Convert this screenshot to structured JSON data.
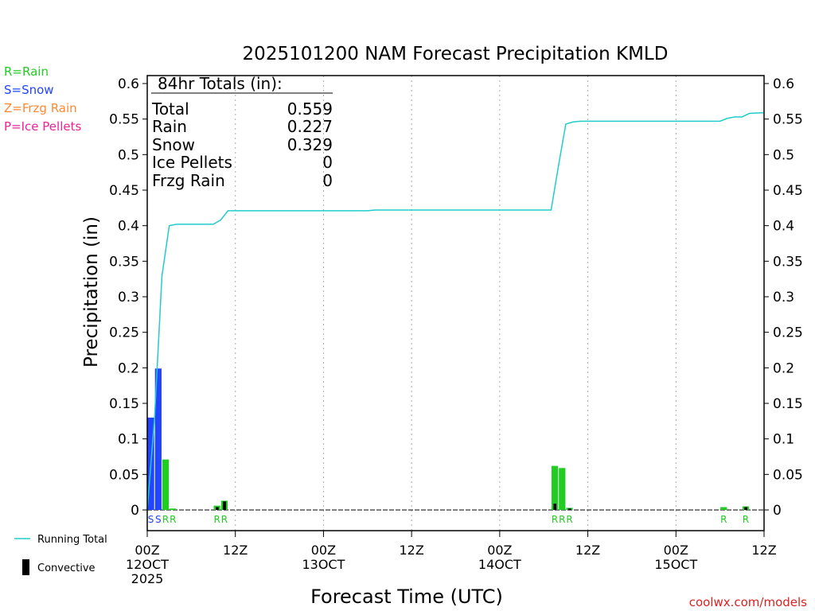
{
  "chart_data": {
    "type": "bar",
    "title": "2025101200 NAM Forecast Precipitation KMLD",
    "xlabel": "Forecast Time (UTC)",
    "ylabel": "Precipitation (in)",
    "ylim": [
      0,
      0.6
    ],
    "yticks": [
      "0",
      "0.05",
      "0.1",
      "0.15",
      "0.2",
      "0.25",
      "0.3",
      "0.35",
      "0.4",
      "0.45",
      "0.5",
      "0.55",
      "0.6"
    ],
    "xlim_hours": [
      0,
      84
    ],
    "x_ticks": [
      {
        "hour": 0,
        "lines": [
          "00Z",
          "12OCT",
          "2025"
        ]
      },
      {
        "hour": 12,
        "lines": [
          "12Z"
        ]
      },
      {
        "hour": 24,
        "lines": [
          "00Z",
          "13OCT"
        ]
      },
      {
        "hour": 36,
        "lines": [
          "12Z"
        ]
      },
      {
        "hour": 48,
        "lines": [
          "00Z",
          "14OCT"
        ]
      },
      {
        "hour": 60,
        "lines": [
          "12Z"
        ]
      },
      {
        "hour": 72,
        "lines": [
          "00Z",
          "15OCT"
        ]
      },
      {
        "hour": 84,
        "lines": [
          "12Z"
        ]
      }
    ],
    "grid": "dotted-vertical",
    "legend_types": [
      {
        "text": "R=Rain",
        "color": "#22cc22"
      },
      {
        "text": "S=Snow",
        "color": "#2244ff"
      },
      {
        "text": "Z=Frzg Rain",
        "color": "#ff8833"
      },
      {
        "text": "P=Ice Pellets",
        "color": "#ee2299"
      }
    ],
    "legend_series": [
      {
        "text": "Running Total",
        "color": "#22cccc"
      },
      {
        "text": "Convective",
        "color": "#000000"
      }
    ],
    "totals": {
      "header": "84hr Totals (in):",
      "rows": [
        {
          "label": "Total",
          "value": "0.559"
        },
        {
          "label": "Rain",
          "value": "0.227"
        },
        {
          "label": "Snow",
          "value": "0.329"
        },
        {
          "label": "Ice Pellets",
          "value": "0"
        },
        {
          "label": "Frzg Rain",
          "value": "0"
        }
      ]
    },
    "bars": [
      {
        "hour": 1,
        "value": 0.13,
        "type": "S",
        "convective": 0
      },
      {
        "hour": 2,
        "value": 0.199,
        "type": "S",
        "convective": 0
      },
      {
        "hour": 3,
        "value": 0.071,
        "type": "R",
        "convective": 0
      },
      {
        "hour": 4,
        "value": 0.002,
        "type": "R",
        "convective": 0
      },
      {
        "hour": 10,
        "value": 0.006,
        "type": "R",
        "convective": 0.004
      },
      {
        "hour": 11,
        "value": 0.013,
        "type": "R",
        "convective": 0.012
      },
      {
        "hour": 56,
        "value": 0.062,
        "type": "R",
        "convective": 0.009
      },
      {
        "hour": 57,
        "value": 0.059,
        "type": "R",
        "convective": 0
      },
      {
        "hour": 58,
        "value": 0.003,
        "type": "R",
        "convective": 0.002
      },
      {
        "hour": 79,
        "value": 0.004,
        "type": "R",
        "convective": 0
      },
      {
        "hour": 82,
        "value": 0.005,
        "type": "R",
        "convective": 0.004
      }
    ],
    "type_labels": [
      {
        "hour": 1,
        "text": "S",
        "color": "#2244ff"
      },
      {
        "hour": 2,
        "text": "S",
        "color": "#2244ff"
      },
      {
        "hour": 3,
        "text": "R",
        "color": "#22cc22"
      },
      {
        "hour": 4,
        "text": "R",
        "color": "#22cc22"
      },
      {
        "hour": 10,
        "text": "R",
        "color": "#22cc22"
      },
      {
        "hour": 11,
        "text": "R",
        "color": "#22cc22"
      },
      {
        "hour": 56,
        "text": "R",
        "color": "#22cc22"
      },
      {
        "hour": 57,
        "text": "R",
        "color": "#22cc22"
      },
      {
        "hour": 58,
        "text": "R",
        "color": "#22cc22"
      },
      {
        "hour": 79,
        "text": "R",
        "color": "#22cc22"
      },
      {
        "hour": 82,
        "text": "R",
        "color": "#22cc22"
      }
    ],
    "running_total": [
      [
        0,
        0
      ],
      [
        1,
        0.13
      ],
      [
        2,
        0.329
      ],
      [
        3,
        0.4
      ],
      [
        4,
        0.402
      ],
      [
        6,
        0.402
      ],
      [
        8,
        0.402
      ],
      [
        9,
        0.402
      ],
      [
        10,
        0.408
      ],
      [
        11,
        0.421
      ],
      [
        12,
        0.421
      ],
      [
        30,
        0.421
      ],
      [
        31,
        0.422
      ],
      [
        55,
        0.422
      ],
      [
        56,
        0.484
      ],
      [
        57,
        0.543
      ],
      [
        58,
        0.546
      ],
      [
        59,
        0.547
      ],
      [
        78,
        0.547
      ],
      [
        79,
        0.551
      ],
      [
        80,
        0.553
      ],
      [
        81,
        0.553
      ],
      [
        82,
        0.558
      ],
      [
        84,
        0.559
      ]
    ],
    "type_colors": {
      "R": "#22cc22",
      "S": "#2244ff",
      "Z": "#ff8833",
      "P": "#ee2299"
    },
    "running_total_color": "#22cccc",
    "credit": "coolwx.com/models"
  }
}
